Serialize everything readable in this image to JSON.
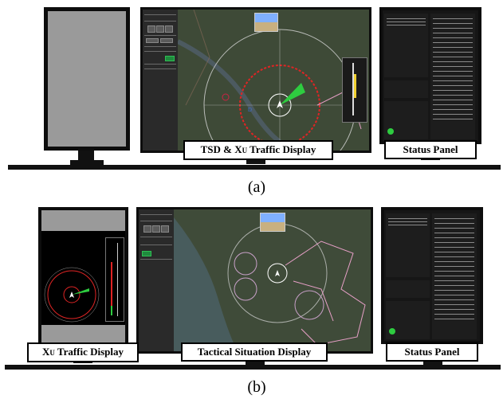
{
  "figure_a": {
    "caption": "(a)",
    "labels": {
      "tsd_xu_main": "TSD & X",
      "tsd_xu_sub": "U",
      "tsd_xu_tail": " Traffic Display",
      "status": "Status Panel"
    }
  },
  "figure_b": {
    "caption": "(b)",
    "labels": {
      "xu_main": "X",
      "xu_sub": "U",
      "xu_tail": " Traffic Display",
      "tactical": "Tactical Situation Display",
      "status": "Status Panel"
    }
  },
  "colors": {
    "bezel": "#0d0d0d",
    "map_land": "#3b4634",
    "range_ring_red": "#e02424",
    "range_ring_white": "#d8d8d8",
    "heading_green": "#2ecc40",
    "route_pink": "#e8a0c8"
  },
  "icons": [
    "ownship-icon",
    "traffic-wedge-icon",
    "attitude-indicator-icon"
  ]
}
